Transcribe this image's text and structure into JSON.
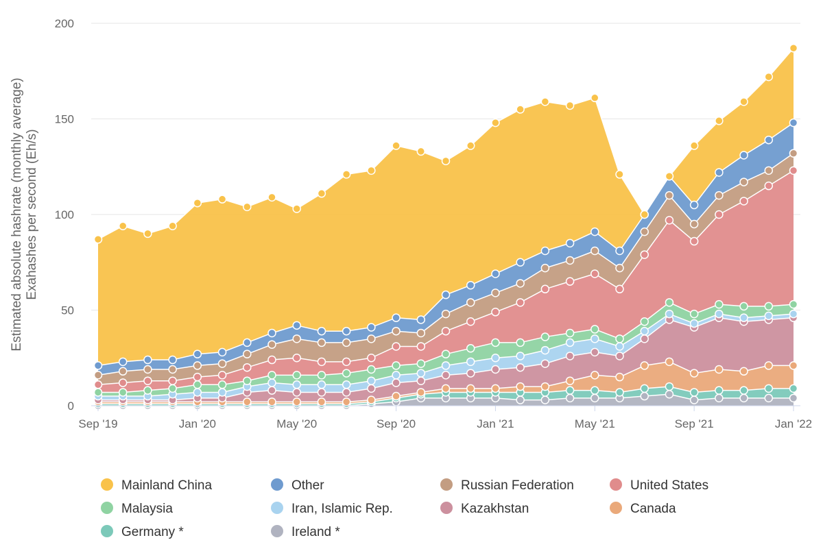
{
  "chart_data": {
    "type": "area",
    "stacked": true,
    "title": "",
    "ylabel_lines": [
      "Estimated absolute hashrate (monthly average)",
      "Exahashes per second (Eh/s)"
    ],
    "xlabel": "",
    "ylim": [
      0,
      200
    ],
    "y_ticks": [
      0,
      50,
      100,
      150,
      200
    ],
    "x_tick_labels": [
      "Sep '19",
      "Jan '20",
      "May '20",
      "Sep '20",
      "Jan '21",
      "May '21",
      "Sep '21",
      "Jan '22"
    ],
    "x": [
      "2019-09",
      "2019-10",
      "2019-11",
      "2019-12",
      "2020-01",
      "2020-02",
      "2020-03",
      "2020-04",
      "2020-05",
      "2020-06",
      "2020-07",
      "2020-08",
      "2020-09",
      "2020-10",
      "2020-11",
      "2020-12",
      "2021-01",
      "2021-02",
      "2021-03",
      "2021-04",
      "2021-05",
      "2021-06",
      "2021-07",
      "2021-08",
      "2021-09",
      "2021-10",
      "2021-11",
      "2021-12",
      "2022-01"
    ],
    "grid": true,
    "legend_position": "bottom",
    "series": [
      {
        "name": "Ireland *",
        "color": "#b0b3c0",
        "values": [
          0,
          0,
          0,
          0,
          0,
          0,
          0,
          0,
          0,
          0,
          0,
          1,
          2,
          4,
          4,
          4,
          4,
          3,
          3,
          4,
          4,
          4,
          5,
          6,
          3,
          4,
          4,
          4,
          4
        ]
      },
      {
        "name": "Germany *",
        "color": "#7cc9b9",
        "values": [
          1,
          1,
          1,
          1,
          1,
          1,
          1,
          1,
          1,
          1,
          1,
          1,
          2,
          2,
          3,
          3,
          3,
          4,
          4,
          4,
          4,
          3,
          4,
          4,
          4,
          4,
          4,
          5,
          5
        ]
      },
      {
        "name": "Canada",
        "color": "#eaa97a",
        "values": [
          1,
          1,
          1,
          1,
          1,
          1,
          1,
          1,
          1,
          1,
          1,
          1,
          1,
          1,
          2,
          2,
          2,
          3,
          3,
          5,
          8,
          8,
          12,
          13,
          10,
          11,
          10,
          12,
          12
        ]
      },
      {
        "name": "Kazakhstan",
        "color": "#cc909e",
        "values": [
          1,
          1,
          1,
          1,
          2,
          2,
          5,
          6,
          5,
          5,
          5,
          6,
          7,
          6,
          7,
          8,
          10,
          10,
          12,
          13,
          12,
          11,
          14,
          22,
          24,
          27,
          26,
          24,
          25
        ]
      },
      {
        "name": "Iran, Islamic Rep.",
        "color": "#a9d3ef",
        "values": [
          2,
          2,
          2,
          3,
          3,
          3,
          3,
          4,
          4,
          4,
          4,
          4,
          4,
          4,
          5,
          6,
          6,
          6,
          7,
          7,
          7,
          5,
          4,
          3,
          2,
          2,
          2,
          2,
          2
        ]
      },
      {
        "name": "Malaysia",
        "color": "#8fd3a2",
        "values": [
          2,
          2,
          3,
          3,
          4,
          4,
          3,
          4,
          5,
          5,
          6,
          6,
          5,
          5,
          6,
          7,
          8,
          7,
          7,
          5,
          5,
          4,
          5,
          6,
          5,
          5,
          6,
          5,
          5
        ]
      },
      {
        "name": "United States",
        "color": "#e08c8c",
        "values": [
          4,
          5,
          5,
          4,
          4,
          5,
          7,
          8,
          9,
          7,
          6,
          6,
          10,
          9,
          12,
          14,
          16,
          21,
          25,
          27,
          29,
          26,
          35,
          43,
          38,
          47,
          55,
          63,
          70
        ]
      },
      {
        "name": "Russian Federation",
        "color": "#c39d82",
        "values": [
          5,
          6,
          6,
          6,
          6,
          6,
          7,
          8,
          10,
          10,
          10,
          10,
          8,
          7,
          9,
          10,
          10,
          10,
          11,
          11,
          12,
          11,
          12,
          13,
          9,
          10,
          10,
          8,
          9
        ]
      },
      {
        "name": "Other",
        "color": "#6f9bcf",
        "values": [
          5,
          5,
          5,
          5,
          6,
          6,
          6,
          6,
          7,
          6,
          6,
          6,
          7,
          7,
          10,
          9,
          10,
          11,
          9,
          9,
          10,
          9,
          9,
          10,
          10,
          12,
          14,
          16,
          16
        ]
      },
      {
        "name": "Mainland China",
        "color": "#f9c24a",
        "values": [
          66,
          71,
          66,
          70,
          79,
          80,
          71,
          71,
          61,
          72,
          82,
          82,
          90,
          88,
          70,
          73,
          79,
          80,
          78,
          72,
          70,
          40,
          0,
          0,
          31,
          27,
          28,
          33,
          39
        ]
      }
    ],
    "legend_order": [
      "Mainland China",
      "Other",
      "Russian Federation",
      "United States",
      "Malaysia",
      "Iran, Islamic Rep.",
      "Kazakhstan",
      "Canada",
      "Germany *",
      "Ireland *"
    ]
  }
}
